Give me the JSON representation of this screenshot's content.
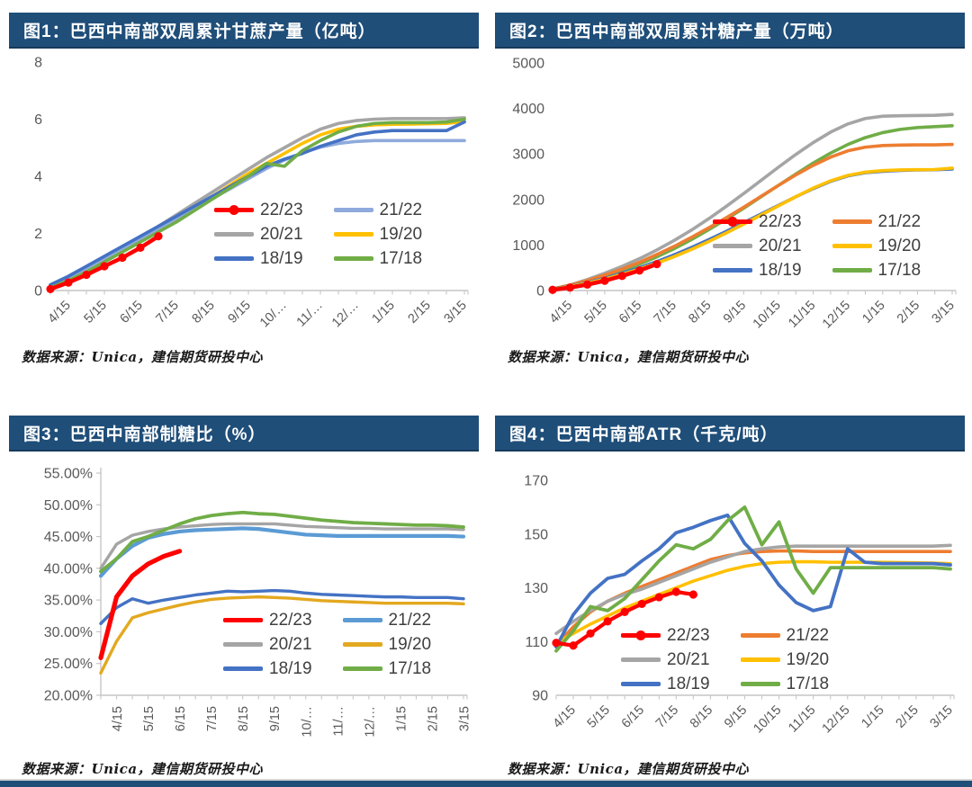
{
  "source_note": "数据来源：Unica，建信期货研投中心",
  "theme": {
    "title_bar_bg": "#1F4E79",
    "title_bar_fg": "#FFFFFF",
    "axis_color": "#C6C6C6",
    "tick_label_color": "#595959",
    "legend_text_color": "#3F3F3F"
  },
  "chart_data": [
    {
      "type": "line",
      "title": "图1：巴西中南部双周累计甘蔗产量（亿吨）",
      "xlabel": "",
      "ylabel": "",
      "ylim": [
        0,
        8
      ],
      "yticks": [
        0,
        2,
        4,
        6,
        8
      ],
      "ytick_labels": [
        "0",
        "2",
        "4",
        "6",
        "8"
      ],
      "x_tick_labels": [
        "4/15",
        "5/15",
        "6/15",
        "7/15",
        "8/15",
        "9/15",
        "10/…",
        "11/…",
        "12/…",
        "1/15",
        "2/15",
        "3/15"
      ],
      "x_label_rotation": 45,
      "n_points": 24,
      "grid": false,
      "legend_position": "inside-center-right",
      "legend": [
        {
          "label": "22/23",
          "color": "#FF0000",
          "marker": true
        },
        {
          "label": "21/22",
          "color": "#8FAADC",
          "marker": false
        },
        {
          "label": "20/21",
          "color": "#A5A5A5",
          "marker": false
        },
        {
          "label": "19/20",
          "color": "#FFC000",
          "marker": false
        },
        {
          "label": "18/19",
          "color": "#4472C4",
          "marker": false
        },
        {
          "label": "17/18",
          "color": "#70AD47",
          "marker": false
        }
      ],
      "series": [
        {
          "name": "20/21",
          "color": "#A5A5A5",
          "width": 3.6,
          "marker": false,
          "values": [
            0.15,
            0.45,
            0.8,
            1.15,
            1.5,
            1.85,
            2.25,
            2.65,
            3.05,
            3.45,
            3.85,
            4.25,
            4.65,
            5.0,
            5.35,
            5.65,
            5.85,
            5.95,
            6.0,
            6.02,
            6.02,
            6.02,
            6.02,
            6.05
          ]
        },
        {
          "name": "19/20",
          "color": "#FFC000",
          "width": 3.6,
          "marker": false,
          "values": [
            0.1,
            0.38,
            0.7,
            1.05,
            1.4,
            1.75,
            2.1,
            2.5,
            2.9,
            3.3,
            3.7,
            4.1,
            4.45,
            4.8,
            5.15,
            5.45,
            5.65,
            5.75,
            5.8,
            5.82,
            5.83,
            5.84,
            5.85,
            5.92
          ]
        },
        {
          "name": "21/22",
          "color": "#8FAADC",
          "width": 3.6,
          "marker": false,
          "values": [
            0.18,
            0.45,
            0.78,
            1.12,
            1.47,
            1.82,
            2.17,
            2.52,
            2.87,
            3.22,
            3.57,
            3.92,
            4.27,
            4.57,
            4.82,
            5.02,
            5.15,
            5.22,
            5.25,
            5.25,
            5.25,
            5.25,
            5.25,
            5.25
          ]
        },
        {
          "name": "18/19",
          "color": "#4472C4",
          "width": 3.6,
          "marker": false,
          "values": [
            0.2,
            0.5,
            0.85,
            1.2,
            1.55,
            1.9,
            2.25,
            2.6,
            2.95,
            3.3,
            3.65,
            4.0,
            4.35,
            4.6,
            4.8,
            5.05,
            5.25,
            5.45,
            5.55,
            5.6,
            5.6,
            5.6,
            5.6,
            5.9
          ]
        },
        {
          "name": "17/18",
          "color": "#70AD47",
          "width": 3.6,
          "marker": false,
          "values": [
            0.1,
            0.35,
            0.65,
            1.0,
            1.35,
            1.7,
            2.05,
            2.4,
            2.8,
            3.2,
            3.6,
            4.0,
            4.45,
            4.35,
            4.9,
            5.25,
            5.55,
            5.75,
            5.85,
            5.88,
            5.88,
            5.88,
            5.9,
            6.0
          ]
        },
        {
          "name": "22/23",
          "color": "#FF0000",
          "width": 4.5,
          "marker": true,
          "values": [
            0.05,
            0.28,
            0.55,
            0.85,
            1.15,
            1.5,
            1.9
          ]
        }
      ]
    },
    {
      "type": "line",
      "title": "图2：巴西中南部双周累计糖产量（万吨）",
      "xlabel": "",
      "ylabel": "",
      "ylim": [
        0,
        5000
      ],
      "yticks": [
        0,
        1000,
        2000,
        3000,
        4000,
        5000
      ],
      "ytick_labels": [
        "0",
        "1000",
        "2000",
        "3000",
        "4000",
        "5000"
      ],
      "x_tick_labels": [
        "4/15",
        "5/15",
        "6/15",
        "7/15",
        "8/15",
        "9/15",
        "10/15",
        "11/15",
        "12/15",
        "1/15",
        "2/15",
        "3/15"
      ],
      "x_label_rotation": 45,
      "n_points": 24,
      "grid": false,
      "legend_position": "inside-center-right",
      "legend": [
        {
          "label": "22/23",
          "color": "#FF0000",
          "marker": true
        },
        {
          "label": "21/22",
          "color": "#ED7D31",
          "marker": false
        },
        {
          "label": "20/21",
          "color": "#A5A5A5",
          "marker": false
        },
        {
          "label": "19/20",
          "color": "#FFC000",
          "marker": false
        },
        {
          "label": "18/19",
          "color": "#4472C4",
          "marker": false
        },
        {
          "label": "17/18",
          "color": "#70AD47",
          "marker": false
        }
      ],
      "series": [
        {
          "name": "20/21",
          "color": "#A5A5A5",
          "width": 3.6,
          "marker": false,
          "values": [
            30,
            120,
            240,
            380,
            530,
            700,
            890,
            1100,
            1330,
            1580,
            1850,
            2130,
            2420,
            2710,
            2990,
            3250,
            3480,
            3660,
            3780,
            3830,
            3840,
            3845,
            3850,
            3870
          ]
        },
        {
          "name": "17/18",
          "color": "#70AD47",
          "width": 3.6,
          "marker": false,
          "values": [
            40,
            110,
            200,
            310,
            440,
            580,
            740,
            920,
            1120,
            1340,
            1570,
            1810,
            2060,
            2310,
            2560,
            2800,
            3020,
            3210,
            3360,
            3470,
            3540,
            3580,
            3600,
            3620
          ]
        },
        {
          "name": "21/22",
          "color": "#ED7D31",
          "width": 3.6,
          "marker": false,
          "values": [
            35,
            115,
            220,
            340,
            470,
            620,
            790,
            970,
            1170,
            1380,
            1600,
            1830,
            2070,
            2310,
            2540,
            2750,
            2930,
            3070,
            3150,
            3185,
            3195,
            3200,
            3200,
            3210
          ]
        },
        {
          "name": "18/19",
          "color": "#4472C4",
          "width": 3.6,
          "marker": false,
          "values": [
            30,
            95,
            175,
            270,
            380,
            500,
            635,
            785,
            945,
            1120,
            1300,
            1490,
            1680,
            1870,
            2060,
            2240,
            2400,
            2520,
            2590,
            2620,
            2640,
            2650,
            2655,
            2670
          ]
        },
        {
          "name": "19/20",
          "color": "#FFC000",
          "width": 3.6,
          "marker": false,
          "values": [
            25,
            85,
            160,
            250,
            355,
            470,
            600,
            745,
            905,
            1080,
            1265,
            1460,
            1660,
            1860,
            2060,
            2250,
            2410,
            2530,
            2600,
            2635,
            2650,
            2655,
            2658,
            2690
          ]
        },
        {
          "name": "22/23",
          "color": "#FF0000",
          "width": 4.5,
          "marker": true,
          "values": [
            15,
            65,
            130,
            215,
            320,
            440,
            580
          ]
        }
      ]
    },
    {
      "type": "line",
      "title": "图3：巴西中南部制糖比（%）",
      "xlabel": "",
      "ylabel": "",
      "ylim": [
        20,
        55
      ],
      "yticks": [
        20,
        25,
        30,
        35,
        40,
        45,
        50,
        55
      ],
      "ytick_labels": [
        "20.00%",
        "25.00%",
        "30.00%",
        "35.00%",
        "40.00%",
        "45.00%",
        "50.00%",
        "55.00%"
      ],
      "x_tick_labels": [
        "4/15",
        "5/15",
        "6/15",
        "7/15",
        "8/15",
        "9/15",
        "10/…",
        "11/…",
        "12/…",
        "1/15",
        "2/15",
        "3/15"
      ],
      "x_label_rotation": 90,
      "n_points": 24,
      "grid": false,
      "legend_position": "inside-center-right",
      "legend": [
        {
          "label": "22/23",
          "color": "#FF0000",
          "marker": false
        },
        {
          "label": "21/22",
          "color": "#5B9BD5",
          "marker": false
        },
        {
          "label": "20/21",
          "color": "#A5A5A5",
          "marker": false
        },
        {
          "label": "19/20",
          "color": "#E3A820",
          "marker": false
        },
        {
          "label": "18/19",
          "color": "#4472C4",
          "marker": false
        },
        {
          "label": "17/18",
          "color": "#70AD47",
          "marker": false
        }
      ],
      "series": [
        {
          "name": "19/20",
          "color": "#E3A820",
          "width": 3.4,
          "marker": false,
          "values": [
            23.5,
            28.5,
            32.2,
            33.0,
            33.6,
            34.2,
            34.7,
            35.1,
            35.3,
            35.4,
            35.5,
            35.4,
            35.3,
            35.1,
            34.9,
            34.8,
            34.7,
            34.6,
            34.5,
            34.5,
            34.5,
            34.5,
            34.5,
            34.4
          ]
        },
        {
          "name": "20/21",
          "color": "#A5A5A5",
          "width": 3.4,
          "marker": false,
          "values": [
            40.0,
            43.8,
            45.2,
            45.8,
            46.2,
            46.5,
            46.7,
            46.9,
            47.0,
            47.0,
            47.0,
            47.0,
            46.8,
            46.6,
            46.5,
            46.4,
            46.3,
            46.3,
            46.2,
            46.2,
            46.2,
            46.2,
            46.2,
            46.1
          ]
        },
        {
          "name": "21/22",
          "color": "#5B9BD5",
          "width": 4.2,
          "marker": false,
          "values": [
            38.8,
            41.5,
            43.5,
            44.8,
            45.4,
            45.8,
            46.0,
            46.1,
            46.2,
            46.3,
            46.2,
            45.9,
            45.6,
            45.3,
            45.2,
            45.1,
            45.1,
            45.1,
            45.1,
            45.1,
            45.1,
            45.1,
            45.1,
            45.0
          ]
        },
        {
          "name": "18/19",
          "color": "#4472C4",
          "width": 3.4,
          "marker": false,
          "values": [
            31.3,
            33.8,
            35.2,
            34.5,
            35.0,
            35.4,
            35.8,
            36.1,
            36.4,
            36.3,
            36.4,
            36.5,
            36.4,
            36.1,
            35.9,
            35.8,
            35.7,
            35.6,
            35.5,
            35.5,
            35.4,
            35.4,
            35.4,
            35.2
          ]
        },
        {
          "name": "17/18",
          "color": "#70AD47",
          "width": 3.8,
          "marker": false,
          "values": [
            39.5,
            41.5,
            44.2,
            45.0,
            46.0,
            47.0,
            47.8,
            48.3,
            48.6,
            48.8,
            48.6,
            48.5,
            48.2,
            47.9,
            47.6,
            47.4,
            47.2,
            47.1,
            47.0,
            46.9,
            46.8,
            46.8,
            46.7,
            46.5
          ]
        },
        {
          "name": "22/23",
          "color": "#FF0000",
          "width": 5.2,
          "marker": false,
          "values": [
            25.9,
            35.5,
            38.8,
            40.7,
            41.9,
            42.7
          ]
        }
      ]
    },
    {
      "type": "line",
      "title": "图4：巴西中南部ATR（千克/吨）",
      "xlabel": "",
      "ylabel": "",
      "ylim": [
        90,
        170
      ],
      "yticks": [
        90,
        110,
        130,
        150,
        170
      ],
      "ytick_labels": [
        "90",
        "110",
        "130",
        "150",
        "170"
      ],
      "x_tick_labels": [
        "4/15",
        "5/15",
        "6/15",
        "7/15",
        "8/15",
        "9/15",
        "10/15",
        "11/15",
        "12/15",
        "1/15",
        "2/15",
        "3/15"
      ],
      "x_label_rotation": 45,
      "n_points": 24,
      "grid": false,
      "legend_position": "inside-bottom-center",
      "legend": [
        {
          "label": "22/23",
          "color": "#FF0000",
          "marker": true
        },
        {
          "label": "21/22",
          "color": "#ED7D31",
          "marker": false
        },
        {
          "label": "20/21",
          "color": "#A5A5A5",
          "marker": false
        },
        {
          "label": "19/20",
          "color": "#FFC000",
          "marker": false
        },
        {
          "label": "18/19",
          "color": "#4472C4",
          "marker": false
        },
        {
          "label": "17/18",
          "color": "#70AD47",
          "marker": false
        }
      ],
      "series": [
        {
          "name": "21/22",
          "color": "#ED7D31",
          "width": 3.6,
          "marker": false,
          "values": [
            108.5,
            115.5,
            121,
            125,
            128,
            130.5,
            133,
            135.5,
            138,
            140.5,
            142,
            143,
            143.5,
            143.7,
            143.7,
            143.5,
            143.5,
            143.5,
            143.5,
            143.5,
            143.5,
            143.5,
            143.5,
            143.5
          ]
        },
        {
          "name": "20/21",
          "color": "#A5A5A5",
          "width": 3.6,
          "marker": false,
          "values": [
            113,
            117.5,
            121.5,
            125,
            127.5,
            129.5,
            132,
            134.5,
            137,
            139.5,
            141.5,
            143.5,
            144.5,
            145.2,
            145.5,
            145.5,
            145.5,
            145.5,
            145.5,
            145.5,
            145.5,
            145.5,
            145.5,
            145.8
          ]
        },
        {
          "name": "19/20",
          "color": "#FFC000",
          "width": 3.6,
          "marker": false,
          "values": [
            109.5,
            113,
            116.5,
            119.5,
            122.5,
            125,
            127.5,
            130,
            132.5,
            134.5,
            136.5,
            138,
            139,
            139.5,
            139.7,
            139.7,
            139.5,
            139.5,
            139.5,
            139.5,
            139.4,
            139.3,
            139.2,
            139
          ]
        },
        {
          "name": "18/19",
          "color": "#4472C4",
          "width": 3.8,
          "marker": false,
          "values": [
            108,
            120,
            128,
            133.5,
            135,
            140,
            144.5,
            150.5,
            152.5,
            155,
            157,
            146.5,
            140,
            131,
            124.5,
            121.5,
            123,
            144.5,
            139.5,
            139,
            139,
            139,
            139,
            138.5
          ]
        },
        {
          "name": "17/18",
          "color": "#70AD47",
          "width": 3.8,
          "marker": false,
          "values": [
            106.5,
            114,
            123,
            121.5,
            126,
            133,
            140,
            146,
            144.5,
            148,
            155,
            160,
            146,
            154.5,
            137,
            128,
            137.5,
            137.5,
            137.5,
            137.5,
            137.5,
            137.5,
            137.5,
            137
          ]
        },
        {
          "name": "22/23",
          "color": "#FF0000",
          "width": 4.2,
          "marker": true,
          "values": [
            109.5,
            108.5,
            113,
            117.5,
            121,
            124,
            126.5,
            128.5,
            127.5
          ]
        }
      ]
    }
  ]
}
